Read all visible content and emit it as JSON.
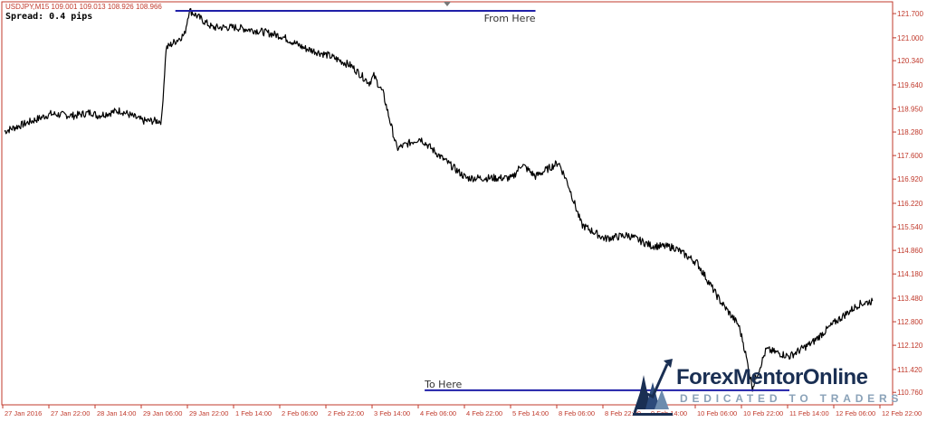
{
  "header": {
    "symbol_line": "USDJPY,M15  109.001 109.013 108.926 108.966",
    "spread_label": "Spread: 0.4 pips"
  },
  "logo": {
    "name_part1": "Forex",
    "name_part2": "Mentor",
    "name_part3": "Online",
    "tagline": "DEDICATED TO TRADERS"
  },
  "colors": {
    "price_line": "#000000",
    "axis_text": "#c0392b",
    "axis_line": "#c0392b",
    "annotation_line": "#1f1fa8",
    "logo_dark": "#1a2f53",
    "logo_light": "#8aa2b8"
  },
  "chart_data": {
    "type": "line",
    "title": "USDJPY,M15",
    "y_ticks": [
      "121.700",
      "121.000",
      "120.340",
      "119.640",
      "118.950",
      "118.280",
      "117.600",
      "116.920",
      "116.220",
      "115.540",
      "114.860",
      "114.180",
      "113.480",
      "112.800",
      "112.120",
      "111.420",
      "110.760"
    ],
    "ylim": [
      110.4,
      122.04
    ],
    "x_ticks": [
      "27 Jan 2016",
      "27 Jan 22:00",
      "28 Jan 14:00",
      "29 Jan 06:00",
      "29 Jan 22:00",
      "1 Feb 14:00",
      "2 Feb 06:00",
      "2 Feb 22:00",
      "3 Feb 14:00",
      "4 Feb 06:00",
      "4 Feb 22:00",
      "5 Feb 14:00",
      "8 Feb 06:00",
      "8 Feb 22:00",
      "9 Feb 14:00",
      "10 Feb 06:00",
      "10 Feb 22:00",
      "11 Feb 14:00",
      "12 Feb 06:00",
      "12 Feb 22:00"
    ],
    "x": [
      0,
      0.5,
      1,
      1.5,
      1.9,
      2,
      2.5,
      3,
      3.4,
      3.5,
      3.9,
      4,
      4.5,
      5,
      5.5,
      6,
      6.5,
      7,
      7.5,
      7.9,
      8,
      8.2,
      8.5,
      9,
      9.5,
      10,
      10.5,
      11,
      11.2,
      11.5,
      12,
      12.2,
      12.5,
      13,
      13.5,
      14,
      14.5,
      15,
      15.5,
      15.9,
      16,
      16.2,
      16.5,
      17,
      17.5,
      18,
      18.5,
      18.8
    ],
    "y": [
      118.3,
      118.55,
      118.8,
      118.75,
      118.85,
      118.75,
      118.9,
      118.6,
      118.6,
      120.7,
      121.1,
      121.8,
      121.3,
      121.3,
      121.2,
      121.05,
      120.7,
      120.5,
      120.2,
      119.7,
      119.9,
      119.4,
      117.8,
      118.1,
      117.5,
      116.95,
      116.95,
      116.95,
      117.35,
      117.0,
      117.4,
      116.8,
      115.6,
      115.2,
      115.3,
      115.0,
      114.95,
      114.5,
      113.4,
      112.7,
      112.2,
      110.9,
      112.0,
      111.8,
      112.2,
      112.8,
      113.3,
      113.4
    ],
    "annotations": [
      {
        "label": "From Here",
        "y": 121.78,
        "x_from": 3.7,
        "x_to": 11.5
      },
      {
        "label": "To Here",
        "y": 110.82,
        "x_from": 9.1,
        "x_to": 17.0
      }
    ],
    "grid": false,
    "legend": "none"
  }
}
